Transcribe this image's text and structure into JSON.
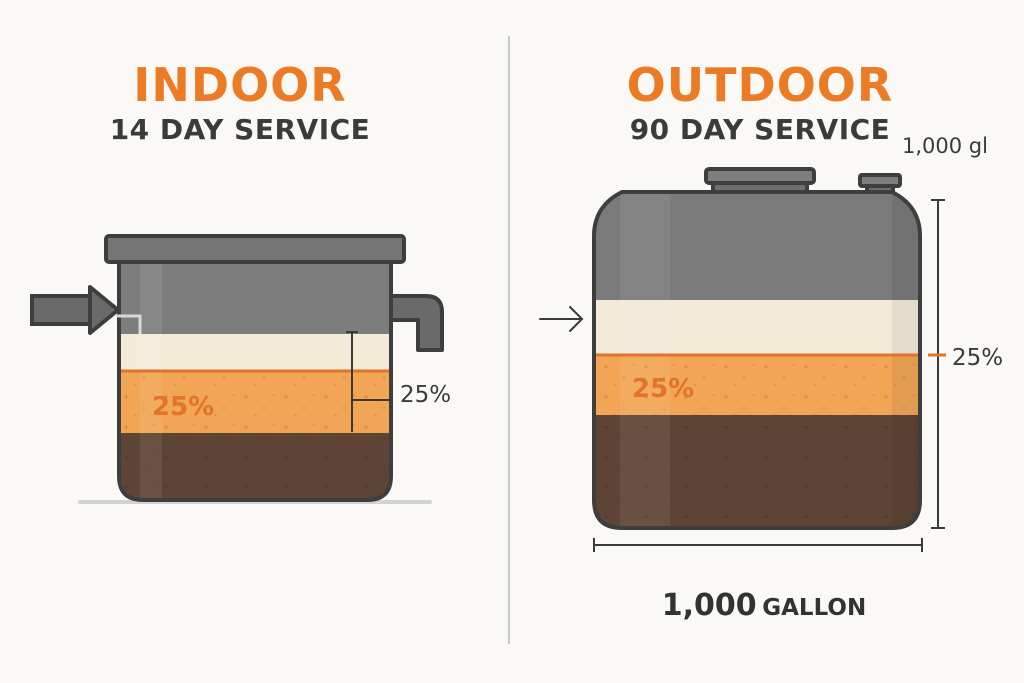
{
  "indoor": {
    "title": "INDOOR",
    "subtitle": "14 DAY SERVICE",
    "layer_label": "25%",
    "dimension_label": "25%"
  },
  "outdoor": {
    "title": "OUTDOOR",
    "subtitle": "90 DAY SERVICE",
    "capacity_note": "1,000 gl",
    "layer_label": "25%",
    "dimension_label": "25%",
    "size_label_number": "1,000",
    "size_label_unit": "GALLON"
  },
  "colors": {
    "accent_orange": "#ec7b26",
    "scum_layer": "#f3ead8",
    "grease_layer": "#f1a555",
    "sludge_layer": "#5e4434",
    "tank_gray": "#7a7a7a",
    "divider": "#c9c9c9"
  }
}
